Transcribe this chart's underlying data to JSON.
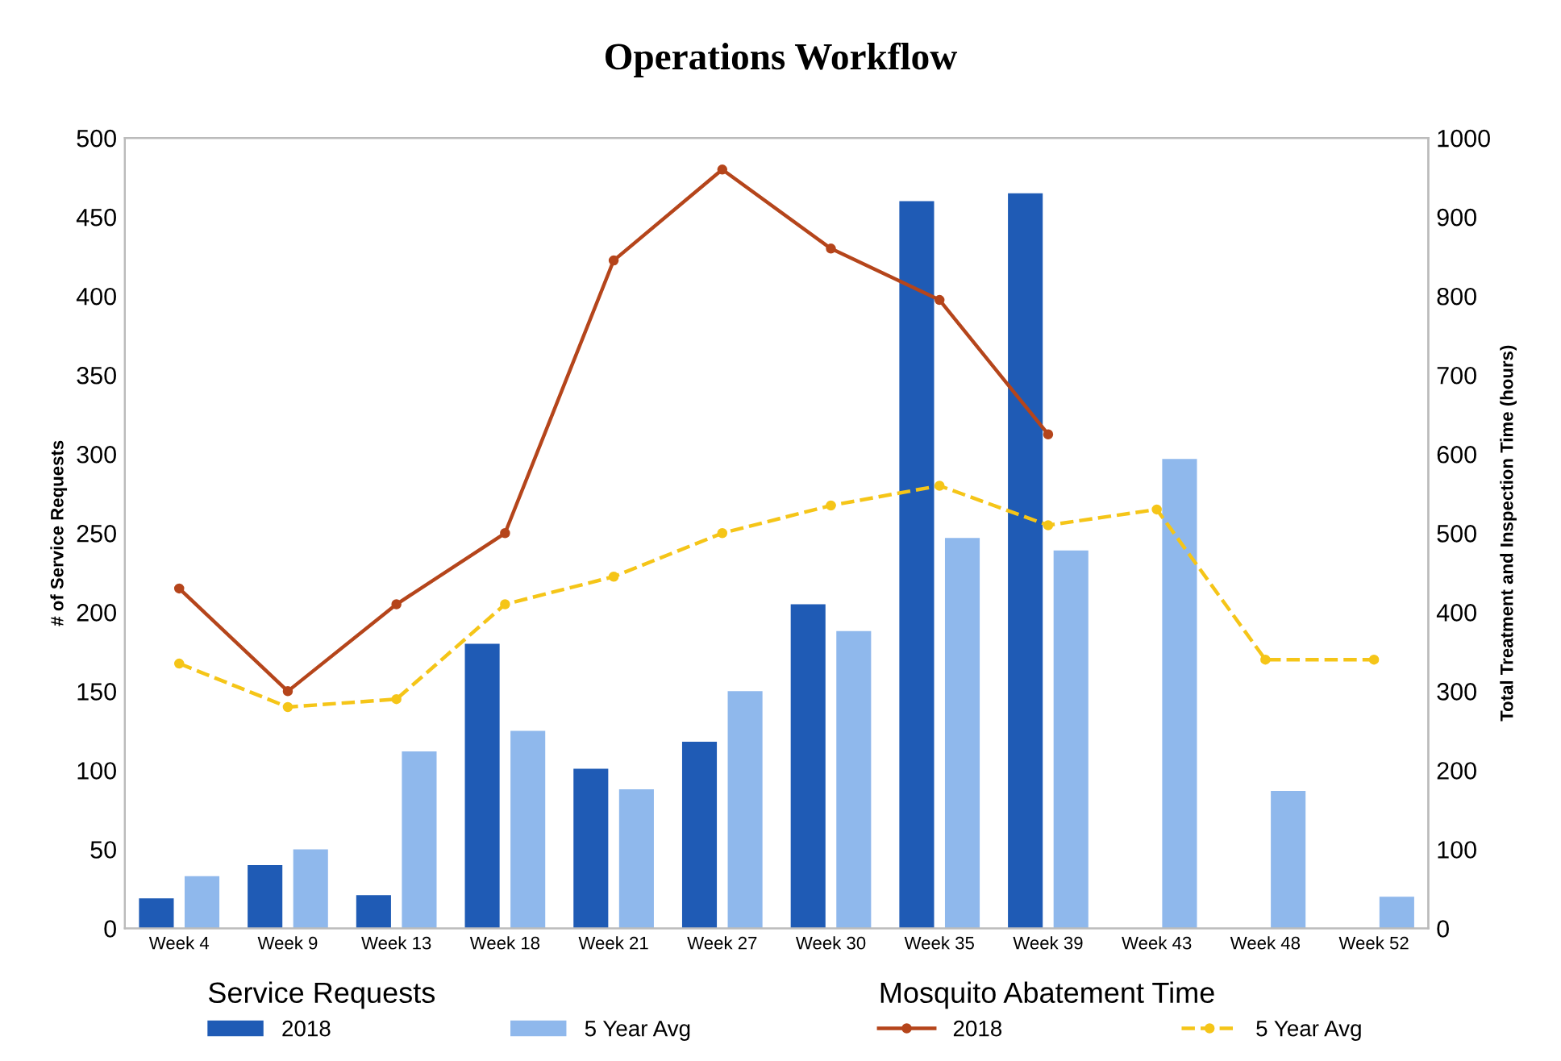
{
  "chart_data": {
    "type": "bar",
    "title": "Operations Workflow",
    "categories": [
      "Week 4",
      "Week 9",
      "Week 13",
      "Week 18",
      "Week 21",
      "Week 27",
      "Week 30",
      "Week 35",
      "Week 39",
      "Week 43",
      "Week 48",
      "Week 52"
    ],
    "series": [
      {
        "name": "2018",
        "color": "#1f5bb5",
        "values": [
          19,
          40,
          21,
          180,
          101,
          118,
          205,
          460,
          465,
          null,
          null,
          null
        ]
      },
      {
        "name": "5 Year Avg",
        "color": "#8fb8ec",
        "values": [
          33,
          50,
          112,
          125,
          88,
          150,
          188,
          247,
          239,
          297,
          87,
          20
        ]
      },
      {
        "name": "2018",
        "type": "line",
        "axis": "y2",
        "color": "#b5451b",
        "marker": "circle",
        "line_style": "solid",
        "values": [
          430,
          300,
          410,
          500,
          845,
          960,
          860,
          795,
          625,
          null,
          null,
          null
        ]
      },
      {
        "name": "5 Year Avg",
        "type": "line",
        "axis": "y2",
        "color": "#f5c518",
        "marker": "circle",
        "line_style": "dashed",
        "values": [
          335,
          280,
          290,
          410,
          445,
          500,
          535,
          560,
          510,
          530,
          340,
          340
        ]
      }
    ],
    "ylabel": "# of Service Requests",
    "y2label": "Total Treatment and Inspection Time (hours)",
    "ylim": [
      0,
      500
    ],
    "yticks": [
      0,
      50,
      100,
      150,
      200,
      250,
      300,
      350,
      400,
      450,
      500
    ],
    "y2lim": [
      0,
      1000
    ],
    "y2ticks": [
      0,
      100,
      200,
      300,
      400,
      500,
      600,
      700,
      800,
      900,
      1000
    ],
    "annotations": [
      "Service Requests",
      "Mosquito Abatement Time"
    ],
    "legend": "bottom",
    "grid": false
  }
}
